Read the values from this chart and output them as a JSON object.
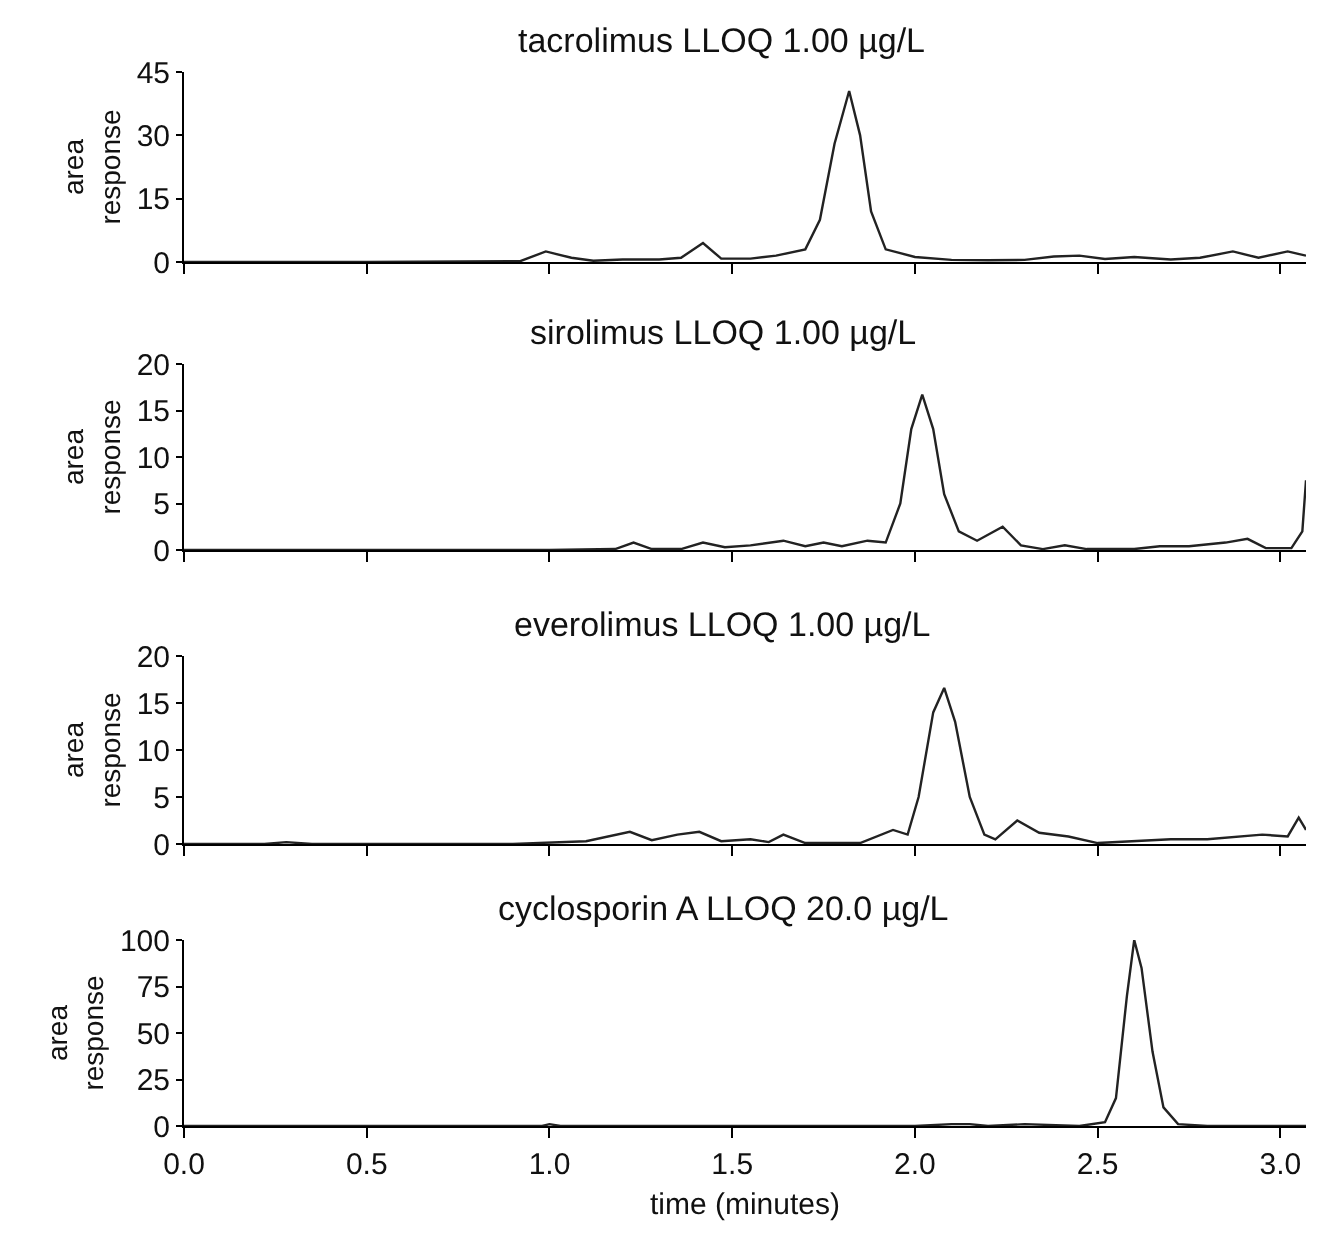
{
  "chart_data": [
    {
      "type": "line",
      "title": "tacrolimus LLOQ 1.00 µg/L",
      "ylabel": "area\nresponse",
      "color": "#222222",
      "tick_labels": "y",
      "xlim": [
        0,
        3.07
      ],
      "xticks": [
        {
          "value": 0,
          "label": null
        },
        {
          "value": 0.5,
          "label": null
        },
        {
          "value": 1,
          "label": null
        },
        {
          "value": 1.5,
          "label": null
        },
        {
          "value": 2,
          "label": null
        },
        {
          "value": 2.5,
          "label": null
        },
        {
          "value": 3,
          "label": null
        }
      ],
      "ylim": [
        0,
        45
      ],
      "yticks": [
        0,
        15,
        30,
        45
      ],
      "x": [
        0,
        0.5,
        0.92,
        0.99,
        1.06,
        1.12,
        1.2,
        1.3,
        1.36,
        1.42,
        1.47,
        1.55,
        1.62,
        1.7,
        1.74,
        1.78,
        1.82,
        1.85,
        1.88,
        1.92,
        2.0,
        2.1,
        2.2,
        2.3,
        2.38,
        2.45,
        2.52,
        2.6,
        2.7,
        2.78,
        2.87,
        2.94,
        3.02,
        3.07
      ],
      "values": [
        0,
        0,
        0.2,
        2.5,
        1.0,
        0.3,
        0.6,
        0.6,
        1.0,
        4.5,
        0.8,
        0.8,
        1.5,
        3,
        10,
        28,
        40.5,
        30,
        12,
        3,
        1.2,
        0.5,
        0.4,
        0.5,
        1.3,
        1.5,
        0.7,
        1.2,
        0.6,
        1.0,
        2.5,
        1.0,
        2.5,
        1.5
      ]
    },
    {
      "type": "line",
      "title": "sirolimus LLOQ 1.00 µg/L",
      "ylabel": "area\nresponse",
      "color": "#222222",
      "tick_labels": "y",
      "xlim": [
        0,
        3.07
      ],
      "xticks": [
        {
          "value": 0,
          "label": null
        },
        {
          "value": 0.5,
          "label": null
        },
        {
          "value": 1,
          "label": null
        },
        {
          "value": 1.5,
          "label": null
        },
        {
          "value": 2,
          "label": null
        },
        {
          "value": 2.5,
          "label": null
        },
        {
          "value": 3,
          "label": null
        }
      ],
      "ylim": [
        0,
        20
      ],
      "yticks": [
        0,
        5,
        10,
        15,
        20
      ],
      "x": [
        0,
        1.0,
        1.18,
        1.23,
        1.28,
        1.36,
        1.42,
        1.48,
        1.55,
        1.64,
        1.7,
        1.75,
        1.8,
        1.87,
        1.92,
        1.96,
        1.99,
        2.02,
        2.05,
        2.08,
        2.12,
        2.17,
        2.24,
        2.29,
        2.35,
        2.41,
        2.47,
        2.6,
        2.67,
        2.75,
        2.85,
        2.91,
        2.96,
        3.03,
        3.06,
        3.07
      ],
      "values": [
        0,
        0,
        0.1,
        0.8,
        0.1,
        0.1,
        0.8,
        0.3,
        0.5,
        1.0,
        0.4,
        0.8,
        0.4,
        1.0,
        0.8,
        5,
        13,
        16.7,
        13,
        6,
        2,
        1.0,
        2.5,
        0.5,
        0.1,
        0.5,
        0.1,
        0.1,
        0.4,
        0.4,
        0.8,
        1.2,
        0.2,
        0.2,
        2,
        7.5
      ]
    },
    {
      "type": "line",
      "title": "everolimus LLOQ 1.00 µg/L",
      "ylabel": "area\nresponse",
      "color": "#222222",
      "tick_labels": "y",
      "xlim": [
        0,
        3.07
      ],
      "xticks": [
        {
          "value": 0,
          "label": null
        },
        {
          "value": 0.5,
          "label": null
        },
        {
          "value": 1,
          "label": null
        },
        {
          "value": 1.5,
          "label": null
        },
        {
          "value": 2,
          "label": null
        },
        {
          "value": 2.5,
          "label": null
        },
        {
          "value": 3,
          "label": null
        }
      ],
      "ylim": [
        0,
        20
      ],
      "yticks": [
        0,
        5,
        10,
        15,
        20
      ],
      "x": [
        0,
        0.22,
        0.28,
        0.35,
        0.9,
        1.1,
        1.22,
        1.28,
        1.35,
        1.41,
        1.47,
        1.55,
        1.6,
        1.64,
        1.7,
        1.85,
        1.94,
        1.98,
        2.01,
        2.05,
        2.08,
        2.11,
        2.15,
        2.19,
        2.22,
        2.28,
        2.34,
        2.42,
        2.5,
        2.7,
        2.8,
        2.95,
        3.02,
        3.05,
        3.07
      ],
      "values": [
        0,
        0,
        0.2,
        0,
        0,
        0.3,
        1.3,
        0.4,
        1.0,
        1.3,
        0.3,
        0.5,
        0.2,
        1.0,
        0.1,
        0.1,
        1.5,
        1.0,
        5,
        14,
        16.6,
        13,
        5,
        1,
        0.5,
        2.5,
        1.2,
        0.8,
        0.1,
        0.5,
        0.5,
        1.0,
        0.8,
        2.8,
        1.5
      ]
    },
    {
      "type": "line",
      "title": "cyclosporin A LLOQ 20.0 µg/L",
      "ylabel": "area\nresponse",
      "xlabel": "time (minutes)",
      "color": "#222222",
      "xlim": [
        0,
        3.07
      ],
      "xticks": [
        {
          "value": 0,
          "label": "0.0"
        },
        {
          "value": 0.5,
          "label": "0.5"
        },
        {
          "value": 1,
          "label": "1.0"
        },
        {
          "value": 1.5,
          "label": "1.5"
        },
        {
          "value": 2,
          "label": "2.0"
        },
        {
          "value": 2.5,
          "label": "2.5"
        },
        {
          "value": 3,
          "label": "3.0"
        }
      ],
      "ylim": [
        0,
        100
      ],
      "yticks": [
        0,
        25,
        50,
        75,
        100
      ],
      "x": [
        0,
        0.98,
        1.0,
        1.03,
        2.0,
        2.1,
        2.15,
        2.2,
        2.3,
        2.45,
        2.52,
        2.55,
        2.58,
        2.6,
        2.62,
        2.65,
        2.68,
        2.72,
        2.8,
        3.07
      ],
      "values": [
        0,
        0,
        1,
        0,
        0,
        1,
        1,
        0,
        1,
        0,
        2,
        15,
        70,
        100,
        85,
        40,
        10,
        1,
        0,
        0
      ]
    }
  ]
}
